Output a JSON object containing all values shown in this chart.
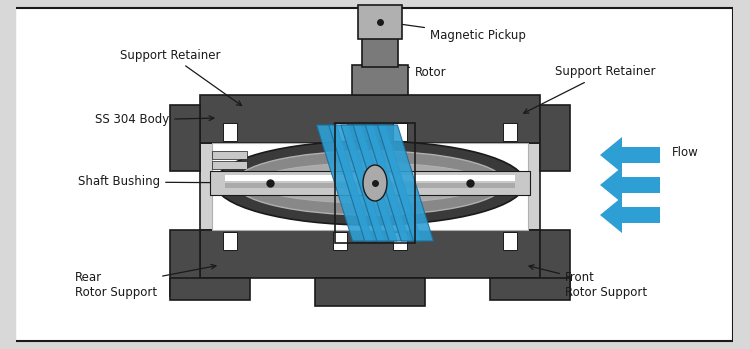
{
  "bg_color": "#d8d8d8",
  "panel_bg": "#ffffff",
  "dark_gray": "#4a4a4a",
  "mid_gray": "#7a7a7a",
  "light_gray": "#b0b0b0",
  "inner_gray": "#d0d0d0",
  "white": "#ffffff",
  "blue": "#2e9fd4",
  "blue_dark": "#1a6e99",
  "black": "#1a1a1a",
  "border_color": "#1a1a1a",
  "labels": {
    "support_retainer_left": "Support Retainer",
    "magnetic_pickup": "Magnetic Pickup",
    "rotor": "Rotor",
    "ss_body": "SS 304 Body",
    "support_retainer_right": "Support Retainer",
    "shaft_bushing": "Shaft Bushing",
    "rear_rotor_support": "Rear\nRotor Support",
    "front_rotor_support": "Front\nRotor Support",
    "flow": "Flow"
  },
  "font_size": 8.5,
  "figsize": [
    7.5,
    3.49
  ],
  "dpi": 100
}
